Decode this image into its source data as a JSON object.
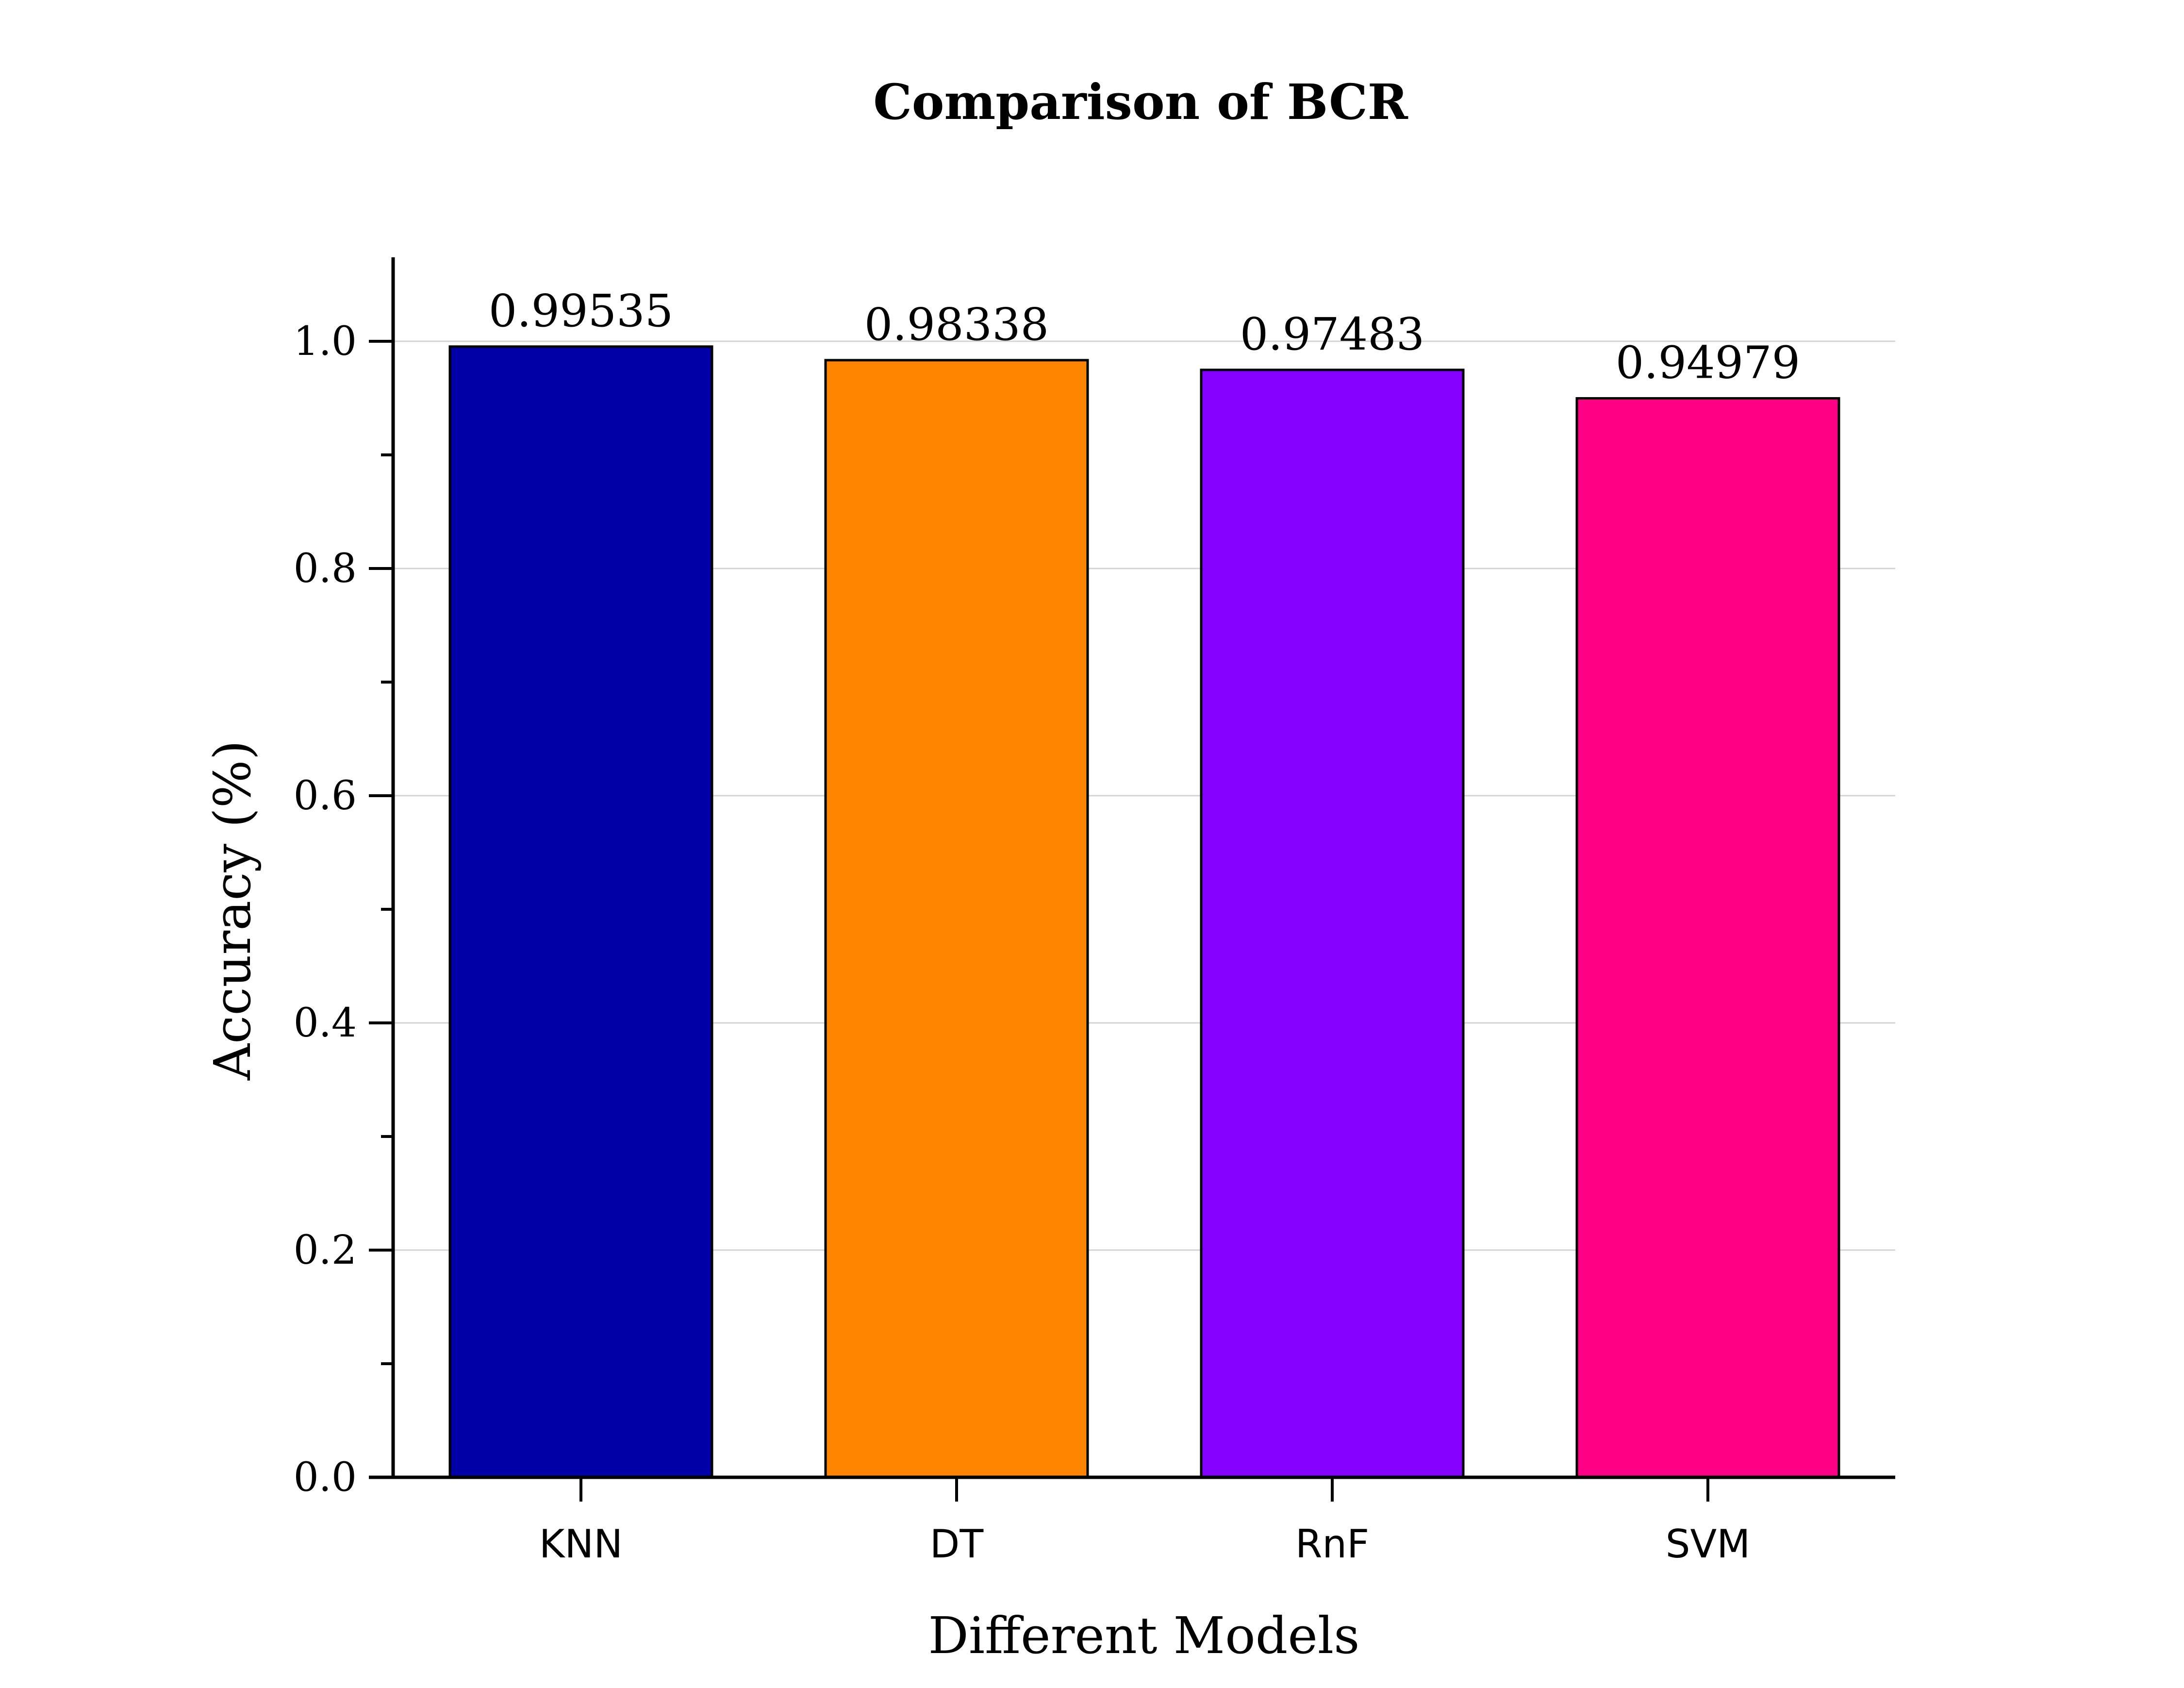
{
  "chart_data": {
    "type": "bar",
    "title": "Comparison of  BCR",
    "xlabel": "Different Models",
    "ylabel": "Accuracy (%)",
    "categories": [
      "KNN",
      "DT",
      "RnF",
      "SVM"
    ],
    "values": [
      0.99535,
      0.98338,
      0.97483,
      0.94979
    ],
    "data_labels": [
      "0.99535",
      "0.98338",
      "0.97483",
      "0.94979"
    ],
    "colors": [
      "#0000A6",
      "#FF8500",
      "#8400FF",
      "#FF0084"
    ],
    "ylim": [
      0,
      1.075
    ],
    "yticks": [
      0.0,
      0.2,
      0.4,
      0.6,
      0.8,
      1.0
    ],
    "ytick_labels": [
      "0.0",
      "0.2",
      "0.4",
      "0.6",
      "0.8",
      "1.0"
    ],
    "grid": true,
    "legend": "none"
  }
}
